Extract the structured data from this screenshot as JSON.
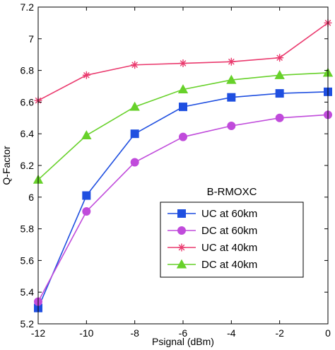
{
  "chart_data": {
    "type": "line",
    "xlabel": "Psignal (dBm)",
    "ylabel": "Q-Factor",
    "xlim": [
      -12,
      0
    ],
    "ylim": [
      5.2,
      7.2
    ],
    "x": [
      -12,
      -10,
      -8,
      -6,
      -4,
      -2,
      0
    ],
    "x_ticks": [
      -12,
      -10,
      -8,
      -6,
      -4,
      -2,
      0
    ],
    "y_ticks": [
      5.2,
      5.4,
      5.6,
      5.8,
      6,
      6.2,
      6.4,
      6.6,
      6.8,
      7,
      7.2
    ],
    "y_tick_labels": [
      "5.2",
      "5.4",
      "5.6",
      "5.8",
      "6",
      "6.2",
      "6.4",
      "6.6",
      "6.8",
      "7",
      "7.2"
    ],
    "legend_title": "B-RMOXC",
    "legend_position": "center-right",
    "grid": false,
    "series": [
      {
        "name": "UC at 60km",
        "color": "#1f4fe0",
        "marker": "square",
        "values": [
          5.3,
          6.01,
          6.4,
          6.57,
          6.63,
          6.655,
          6.665
        ]
      },
      {
        "name": "DC at 60km",
        "color": "#c04bdb",
        "marker": "circle",
        "values": [
          5.34,
          5.91,
          6.22,
          6.38,
          6.45,
          6.5,
          6.52
        ]
      },
      {
        "name": "UC at 40km",
        "color": "#ea3a6e",
        "marker": "star",
        "values": [
          6.61,
          6.77,
          6.835,
          6.845,
          6.855,
          6.88,
          7.1
        ]
      },
      {
        "name": "DC at 40km",
        "color": "#67d12a",
        "marker": "triangle",
        "values": [
          6.11,
          6.39,
          6.57,
          6.68,
          6.74,
          6.77,
          6.785
        ]
      }
    ]
  }
}
